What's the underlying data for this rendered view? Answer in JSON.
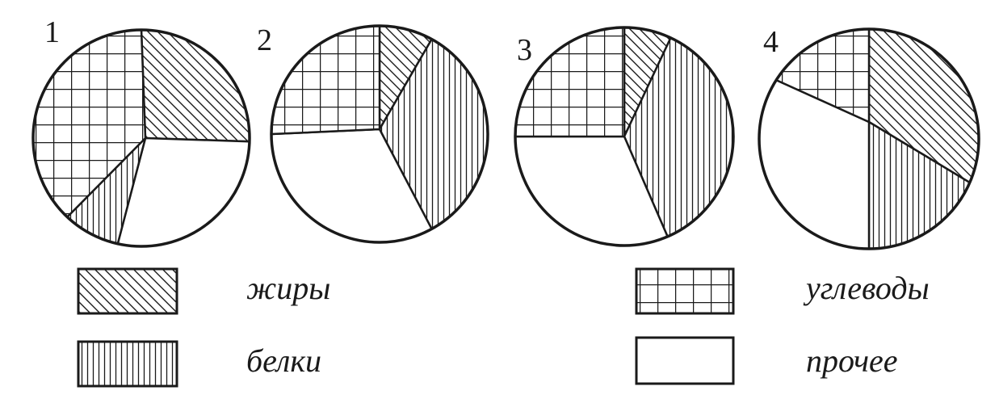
{
  "chart_data": [
    {
      "type": "pie",
      "title": "1",
      "slices": [
        {
          "category": "жиры",
          "value": 25.5
        },
        {
          "category": "прочее",
          "value": 28.0
        },
        {
          "category": "белки",
          "value": 8.5
        },
        {
          "category": "углеводы",
          "value": 38.0
        }
      ]
    },
    {
      "type": "pie",
      "title": "2",
      "slices": [
        {
          "category": "жиры",
          "value": 8.0
        },
        {
          "category": "белки",
          "value": 34.0
        },
        {
          "category": "прочее",
          "value": 33.0
        },
        {
          "category": "углеводы",
          "value": 25.0
        }
      ]
    },
    {
      "type": "pie",
      "title": "3",
      "slices": [
        {
          "category": "жиры",
          "value": 7.0
        },
        {
          "category": "белки",
          "value": 36.5
        },
        {
          "category": "прочее",
          "value": 31.5
        },
        {
          "category": "углеводы",
          "value": 25.0
        }
      ]
    },
    {
      "type": "pie",
      "title": "4",
      "slices": [
        {
          "category": "жиры",
          "value": 31.5
        },
        {
          "category": "белки",
          "value": 18.5
        },
        {
          "category": "прочее",
          "value": 34.0
        },
        {
          "category": "углеводы",
          "value": 16.0
        }
      ]
    }
  ],
  "legend": [
    {
      "label": "жиры",
      "pattern": "diagonal-hatch"
    },
    {
      "label": "белки",
      "pattern": "vertical-hatch"
    },
    {
      "label": "углеводы",
      "pattern": "grid"
    },
    {
      "label": "прочее",
      "pattern": "blank"
    }
  ],
  "colors": {
    "ink": "#1a1a1a",
    "background": "#ffffff"
  }
}
